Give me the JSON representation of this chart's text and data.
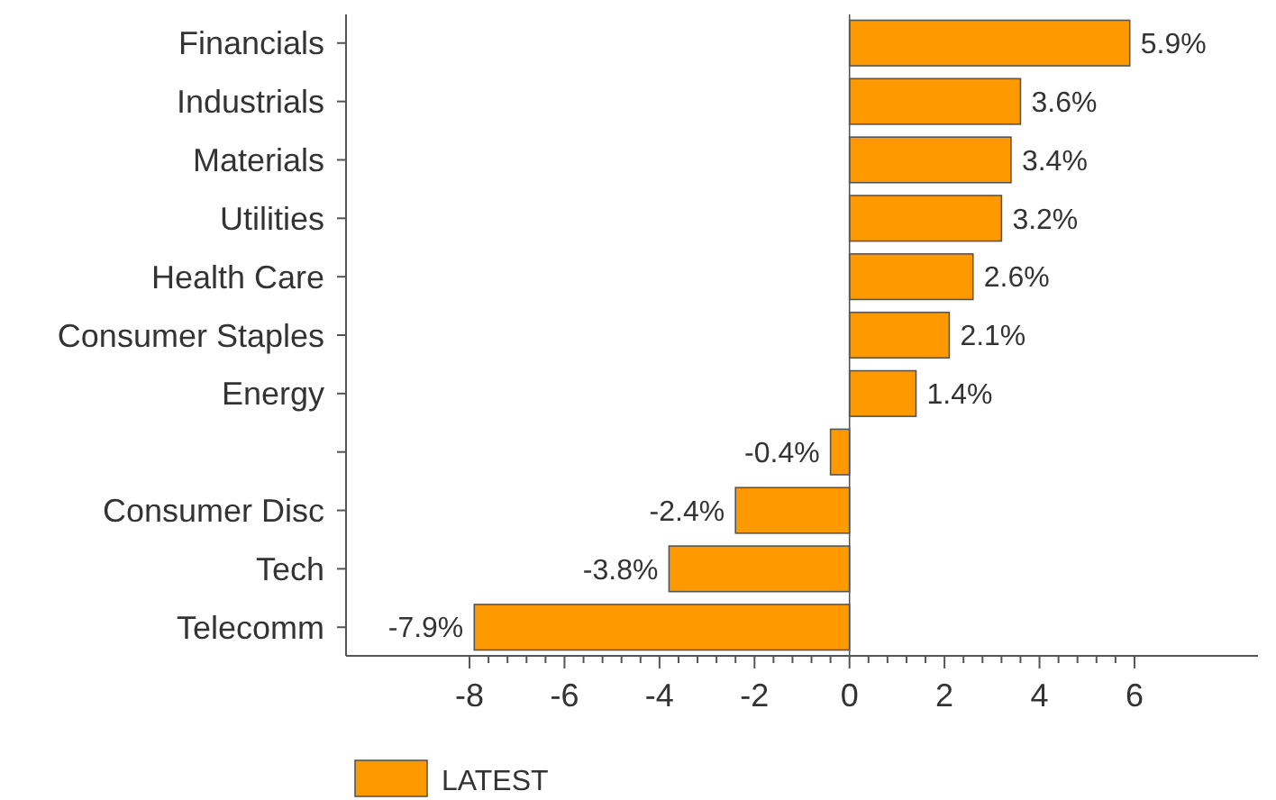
{
  "chart_data": {
    "type": "bar",
    "orientation": "horizontal",
    "categories": [
      "Financials",
      "Industrials",
      "Materials",
      "Utilities",
      "Health Care",
      "Consumer Staples",
      "Energy",
      null,
      "Consumer Disc",
      "Tech",
      "Telecomm"
    ],
    "series": [
      {
        "name": "LATEST",
        "color": "#ff9900",
        "values": [
          5.9,
          3.6,
          3.4,
          3.2,
          2.6,
          2.1,
          1.4,
          -0.4,
          -2.4,
          -3.8,
          -7.9
        ],
        "value_labels": [
          "5.9%",
          "3.6%",
          "3.4%",
          "3.2%",
          "2.6%",
          "2.1%",
          "1.4%",
          "-0.4%",
          "-2.4%",
          "-3.8%",
          "-7.9%"
        ]
      }
    ],
    "xlim": [
      -10.6,
      8.6
    ],
    "xticks": [
      -8,
      {
        "value": -7.6,
        "label": null
      },
      {
        "value": -7.2,
        "label": null
      },
      {
        "value": -6.8,
        "label": null
      },
      {
        "value": -6.4,
        "label": null
      },
      -6,
      {
        "value": -5.6,
        "label": null
      },
      {
        "value": -5.2,
        "label": null
      },
      {
        "value": -4.8,
        "label": null
      },
      {
        "value": -4.4,
        "label": null
      },
      -4,
      {
        "value": -3.6,
        "label": null
      },
      {
        "value": -3.2,
        "label": null
      },
      {
        "value": -2.8,
        "label": null
      },
      {
        "value": -2.4,
        "label": null
      },
      -2,
      {
        "value": -1.6,
        "label": null
      },
      {
        "value": -1.2,
        "label": null
      },
      {
        "value": -0.8,
        "label": null
      },
      {
        "value": -0.4,
        "label": null
      },
      0,
      {
        "value": 0.4,
        "label": null
      },
      {
        "value": 0.8,
        "label": null
      },
      {
        "value": 1.2,
        "label": null
      },
      {
        "value": 1.6,
        "label": null
      },
      2,
      {
        "value": 2.4,
        "label": null
      },
      {
        "value": 2.8,
        "label": null
      },
      {
        "value": 3.2,
        "label": null
      },
      {
        "value": 3.6,
        "label": null
      },
      4,
      {
        "value": 4.4,
        "label": null
      },
      {
        "value": 4.8,
        "label": null
      },
      {
        "value": 5.2,
        "label": null
      },
      {
        "value": 5.6,
        "label": null
      },
      6
    ],
    "ref_lines": [
      {
        "axis": "x",
        "value": 0,
        "color": "#555555"
      }
    ],
    "legend": "bottom left"
  }
}
